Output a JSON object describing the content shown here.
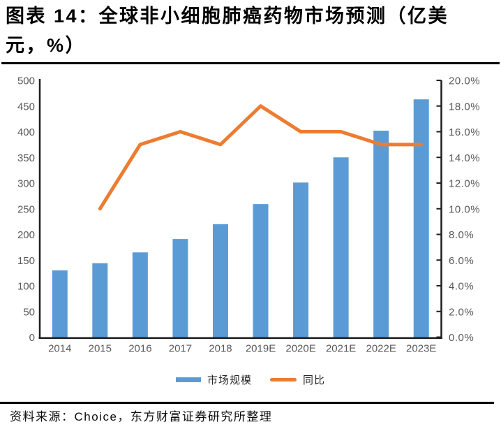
{
  "header": {
    "title_line1": "图表 14：全球非小细胞肺癌药物市场预测（亿美",
    "title_line2": "元，%）"
  },
  "chart_data": {
    "type": "combo",
    "title": "图表 14：全球非小细胞肺癌药物市场预测（亿美元，%）",
    "categories": [
      "2014",
      "2015",
      "2016",
      "2017",
      "2018",
      "2019E",
      "2020E",
      "2021E",
      "2022E",
      "2023E"
    ],
    "series": [
      {
        "name": "市场规模",
        "type": "bar",
        "axis": "left",
        "unit": "亿美元",
        "color": "#5B9BD5",
        "values": [
          130,
          144,
          165,
          191,
          220,
          259,
          301,
          350,
          402,
          463
        ]
      },
      {
        "name": "同比",
        "type": "line",
        "axis": "right",
        "unit": "%",
        "color": "#ED7C31",
        "values": [
          null,
          10.0,
          15.0,
          16.0,
          15.0,
          18.0,
          16.0,
          16.0,
          15.0,
          15.0
        ]
      }
    ],
    "left_axis": {
      "min": 0,
      "max": 500,
      "step": 50,
      "labels": [
        "0",
        "50",
        "100",
        "150",
        "200",
        "250",
        "300",
        "350",
        "400",
        "450",
        "500"
      ]
    },
    "right_axis": {
      "min": 0,
      "max": 20,
      "step": 2,
      "labels": [
        "0.0%",
        "2.0%",
        "4.0%",
        "6.0%",
        "8.0%",
        "10.0%",
        "12.0%",
        "14.0%",
        "16.0%",
        "18.0%",
        "20.0%"
      ]
    },
    "legend_position": "bottom",
    "grid": false,
    "tick_color": "#595959",
    "axis_color": "#1f1f1f"
  },
  "footer": {
    "source": "资料来源：Choice，东方财富证券研究所整理"
  }
}
